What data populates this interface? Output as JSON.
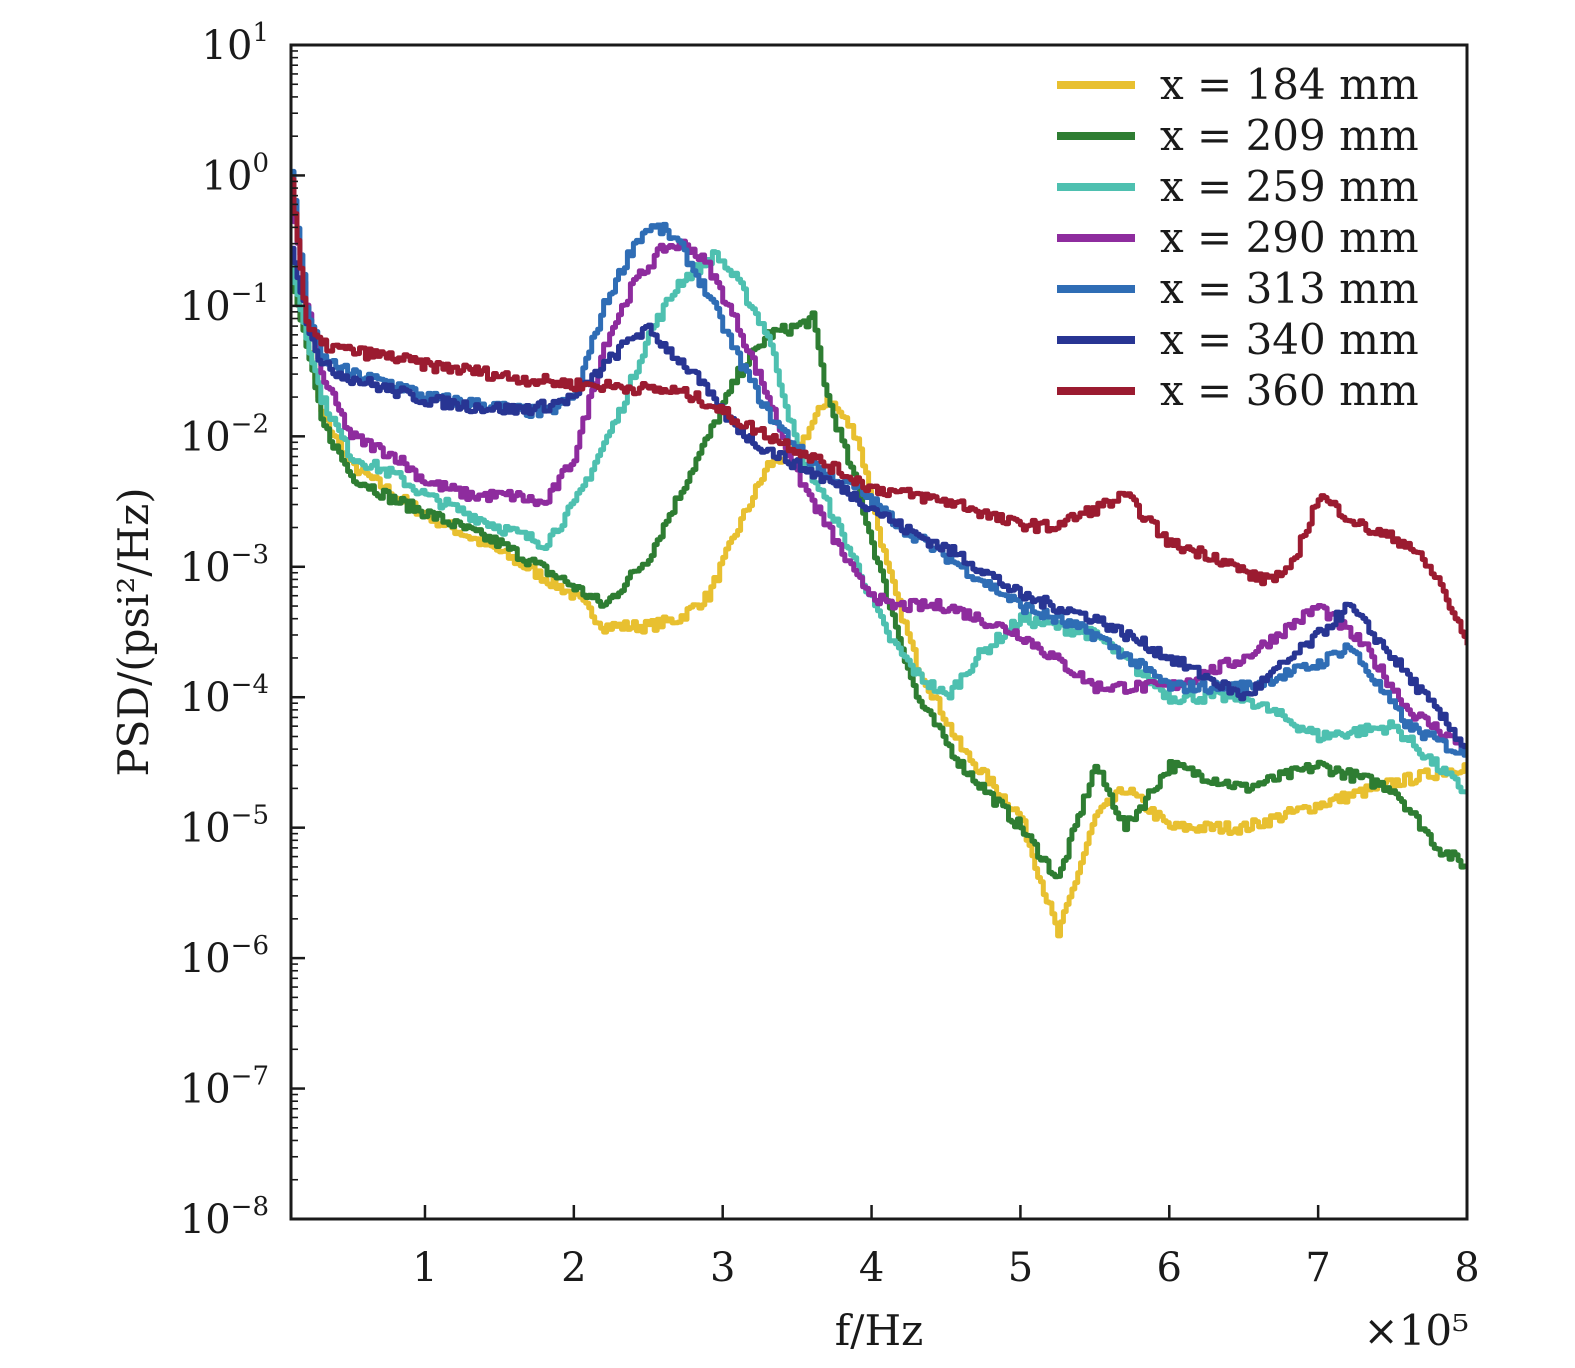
{
  "chart_data": {
    "type": "line",
    "title": "",
    "xlabel": "f/Hz",
    "ylabel": "PSD/(psi²/Hz)",
    "x_multiplier": "×10⁵",
    "x_scale": "linear",
    "y_scale": "log",
    "xlim": [
      0.1,
      8
    ],
    "ylim": [
      1e-08,
      10
    ],
    "x_ticks": [
      {
        "value": 1,
        "label": "1"
      },
      {
        "value": 2,
        "label": "2"
      },
      {
        "value": 3,
        "label": "3"
      },
      {
        "value": 4,
        "label": "4"
      },
      {
        "value": 5,
        "label": "5"
      },
      {
        "value": 6,
        "label": "6"
      },
      {
        "value": 7,
        "label": "7"
      },
      {
        "value": 8,
        "label": "8"
      }
    ],
    "y_ticks": [
      {
        "exp": 1,
        "base": "10",
        "sup": "1"
      },
      {
        "exp": 0,
        "base": "10",
        "sup": "0"
      },
      {
        "exp": -1,
        "base": "10",
        "sup": "−1"
      },
      {
        "exp": -2,
        "base": "10",
        "sup": "−2"
      },
      {
        "exp": -3,
        "base": "10",
        "sup": "−3"
      },
      {
        "exp": -4,
        "base": "10",
        "sup": "−4"
      },
      {
        "exp": -5,
        "base": "10",
        "sup": "−5"
      },
      {
        "exp": -6,
        "base": "10",
        "sup": "−6"
      },
      {
        "exp": -7,
        "base": "10",
        "sup": "−7"
      },
      {
        "exp": -8,
        "base": "10",
        "sup": "−8"
      }
    ],
    "grid": false,
    "legend_position": "top-right",
    "series": [
      {
        "name": "x = 184 mm",
        "color": "#e8c030",
        "x": [
          0.1,
          0.2,
          0.3,
          0.5,
          0.8,
          1.0,
          1.5,
          2.0,
          2.2,
          2.5,
          2.7,
          2.9,
          3.1,
          3.3,
          3.5,
          3.7,
          3.9,
          4.1,
          4.3,
          4.6,
          5.0,
          5.25,
          5.5,
          5.7,
          6.0,
          6.5,
          7.0,
          7.5,
          8.0
        ],
        "y": [
          0.2,
          0.06,
          0.015,
          0.006,
          0.0035,
          0.0025,
          0.0013,
          0.0006,
          0.00035,
          0.00035,
          0.0004,
          0.0006,
          0.002,
          0.006,
          0.008,
          0.02,
          0.01,
          0.001,
          0.00018,
          4e-05,
          1.2e-05,
          1.5e-06,
          1.2e-05,
          2e-05,
          1e-05,
          1e-05,
          1.5e-05,
          2.2e-05,
          3e-05
        ]
      },
      {
        "name": "x = 209 mm",
        "color": "#2e7d32",
        "x": [
          0.1,
          0.2,
          0.3,
          0.5,
          0.8,
          1.0,
          1.5,
          2.0,
          2.2,
          2.5,
          2.7,
          2.9,
          3.1,
          3.3,
          3.5,
          3.6,
          3.7,
          3.9,
          4.1,
          4.3,
          4.6,
          5.0,
          5.25,
          5.5,
          5.7,
          6.0,
          6.5,
          7.0,
          7.5,
          7.8,
          8.0
        ],
        "y": [
          0.15,
          0.05,
          0.013,
          0.005,
          0.0032,
          0.0026,
          0.0015,
          0.0007,
          0.0005,
          0.0012,
          0.0035,
          0.01,
          0.03,
          0.06,
          0.07,
          0.08,
          0.02,
          0.004,
          0.0006,
          0.0001,
          3e-05,
          1e-05,
          4e-06,
          3e-05,
          1e-05,
          3e-05,
          2e-05,
          3e-05,
          2e-05,
          7e-06,
          5e-06
        ]
      },
      {
        "name": "x = 259 mm",
        "color": "#4ec0b0",
        "x": [
          0.1,
          0.2,
          0.3,
          0.5,
          0.8,
          1.0,
          1.5,
          1.8,
          2.0,
          2.3,
          2.5,
          2.7,
          2.95,
          3.1,
          3.3,
          3.5,
          3.7,
          3.9,
          4.1,
          4.3,
          4.5,
          4.7,
          5.0,
          5.5,
          6.0,
          6.5,
          7.0,
          7.5,
          8.0
        ],
        "y": [
          0.2,
          0.06,
          0.02,
          0.007,
          0.005,
          0.0035,
          0.002,
          0.0015,
          0.003,
          0.015,
          0.06,
          0.15,
          0.25,
          0.15,
          0.06,
          0.008,
          0.003,
          0.001,
          0.0003,
          0.00015,
          0.0001,
          0.0002,
          0.0004,
          0.0003,
          0.0001,
          0.0001,
          5e-05,
          6e-05,
          1.8e-05
        ]
      },
      {
        "name": "x = 290 mm",
        "color": "#8e2c9e",
        "x": [
          0.1,
          0.2,
          0.3,
          0.5,
          0.8,
          1.0,
          1.3,
          1.6,
          1.8,
          2.0,
          2.2,
          2.4,
          2.6,
          2.75,
          2.9,
          3.1,
          3.3,
          3.5,
          3.7,
          3.9,
          4.1,
          4.5,
          5.0,
          5.5,
          6.0,
          6.5,
          7.0,
          7.3,
          7.6,
          8.0
        ],
        "y": [
          0.6,
          0.1,
          0.03,
          0.01,
          0.007,
          0.0045,
          0.0035,
          0.0035,
          0.003,
          0.007,
          0.05,
          0.15,
          0.28,
          0.3,
          0.2,
          0.07,
          0.02,
          0.005,
          0.002,
          0.0008,
          0.0005,
          0.0005,
          0.0003,
          0.00012,
          0.00012,
          0.0002,
          0.0005,
          0.00025,
          8e-05,
          4e-05
        ]
      },
      {
        "name": "x = 313 mm",
        "color": "#2f6db5",
        "x": [
          0.1,
          0.2,
          0.3,
          0.5,
          0.8,
          1.0,
          1.3,
          1.6,
          1.8,
          2.0,
          2.2,
          2.4,
          2.5,
          2.6,
          2.7,
          2.9,
          3.1,
          3.3,
          3.5,
          3.7,
          3.9,
          4.2,
          4.6,
          5.0,
          5.5,
          6.0,
          6.5,
          7.0,
          7.2,
          7.6,
          8.0
        ],
        "y": [
          1.0,
          0.1,
          0.04,
          0.03,
          0.025,
          0.02,
          0.018,
          0.016,
          0.015,
          0.02,
          0.1,
          0.3,
          0.4,
          0.38,
          0.3,
          0.12,
          0.04,
          0.015,
          0.008,
          0.005,
          0.004,
          0.002,
          0.001,
          0.0005,
          0.0003,
          0.00012,
          0.00012,
          0.00018,
          0.00025,
          6e-05,
          3.5e-05
        ]
      },
      {
        "name": "x = 340 mm",
        "color": "#283593",
        "x": [
          0.1,
          0.2,
          0.3,
          0.5,
          0.8,
          1.0,
          1.3,
          1.6,
          1.8,
          2.0,
          2.2,
          2.4,
          2.5,
          2.6,
          2.8,
          3.0,
          3.2,
          3.5,
          3.8,
          4.2,
          4.6,
          5.0,
          5.5,
          6.0,
          6.5,
          7.0,
          7.2,
          7.5,
          8.0
        ],
        "y": [
          0.3,
          0.08,
          0.035,
          0.028,
          0.022,
          0.019,
          0.017,
          0.016,
          0.017,
          0.02,
          0.035,
          0.06,
          0.065,
          0.05,
          0.03,
          0.015,
          0.009,
          0.006,
          0.004,
          0.002,
          0.0012,
          0.0006,
          0.0004,
          0.0002,
          0.0001,
          0.0003,
          0.0005,
          0.0002,
          4e-05
        ]
      },
      {
        "name": "x = 360 mm",
        "color": "#9b1b30",
        "x": [
          0.1,
          0.2,
          0.3,
          0.5,
          0.8,
          1.0,
          1.3,
          1.6,
          2.0,
          2.3,
          2.5,
          2.7,
          2.9,
          3.1,
          3.4,
          3.7,
          4.0,
          4.3,
          4.6,
          4.9,
          5.2,
          5.4,
          5.7,
          6.0,
          6.3,
          6.6,
          6.8,
          7.0,
          7.3,
          7.6,
          7.8,
          8.0
        ],
        "y": [
          0.9,
          0.07,
          0.05,
          0.045,
          0.04,
          0.035,
          0.032,
          0.028,
          0.025,
          0.024,
          0.023,
          0.022,
          0.018,
          0.013,
          0.009,
          0.006,
          0.004,
          0.0035,
          0.003,
          0.0022,
          0.002,
          0.0025,
          0.0035,
          0.0015,
          0.0012,
          0.0008,
          0.0009,
          0.0035,
          0.002,
          0.0015,
          0.0008,
          0.00025
        ]
      }
    ]
  }
}
